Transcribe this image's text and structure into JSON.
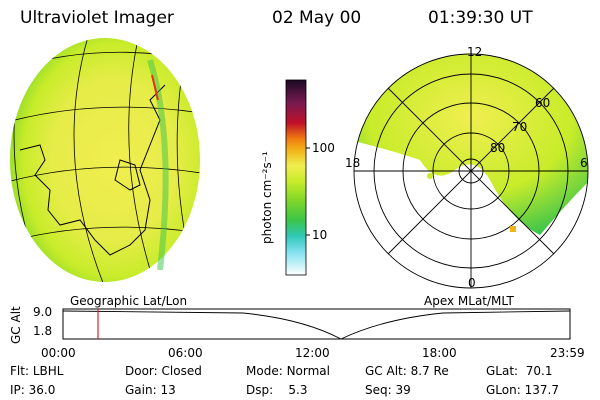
{
  "header": {
    "instrument": "Ultraviolet Imager",
    "date": "02 May 00",
    "time": "01:39:30 UT"
  },
  "colorbar": {
    "unit_label": "photon cm⁻²s⁻¹",
    "ticks": [
      "100",
      "10"
    ],
    "colors": [
      "#1a0a24",
      "#3a1450",
      "#7a1a50",
      "#c0102a",
      "#e83018",
      "#f07a10",
      "#f2b418",
      "#f0ee50",
      "#c8ec2a",
      "#7ed62a",
      "#3cc44a",
      "#2fc8b8",
      "#7fe0ee",
      "#ddf4f8",
      "#ffffff"
    ]
  },
  "geo_panel": {
    "label": "Geographic Lat/Lon"
  },
  "apex_panel": {
    "label": "Apex MLat/MLT",
    "mlt_labels": {
      "top": "12",
      "left": "18",
      "right": "6",
      "bottom": "0"
    },
    "lat_labels": [
      "60",
      "70",
      "80"
    ]
  },
  "timeline": {
    "ylabel": "GC Alt",
    "yticks": [
      "9.0",
      "1.8"
    ],
    "xticks": [
      "00:00",
      "06:00",
      "12:00",
      "18:00",
      "23:59"
    ],
    "marker_fraction": 0.069
  },
  "info": {
    "flt_label": "Flt:",
    "flt_value": "LBHL",
    "ip_label": "IP:",
    "ip_value": "36.0",
    "door_label": "Door:",
    "door_value": "Closed",
    "gain_label": "Gain:",
    "gain_value": "13",
    "mode_label": "Mode:",
    "mode_value": "Normal",
    "dsp_label": "Dsp:",
    "dsp_value": "5.3",
    "gcalt_label": "GC Alt:",
    "gcalt_value": "8.7 Re",
    "seq_label": "Seq:",
    "seq_value": "39",
    "glat_label": "GLat:",
    "glat_value": "70.1",
    "glon_label": "GLon:",
    "glon_value": "137.7"
  }
}
